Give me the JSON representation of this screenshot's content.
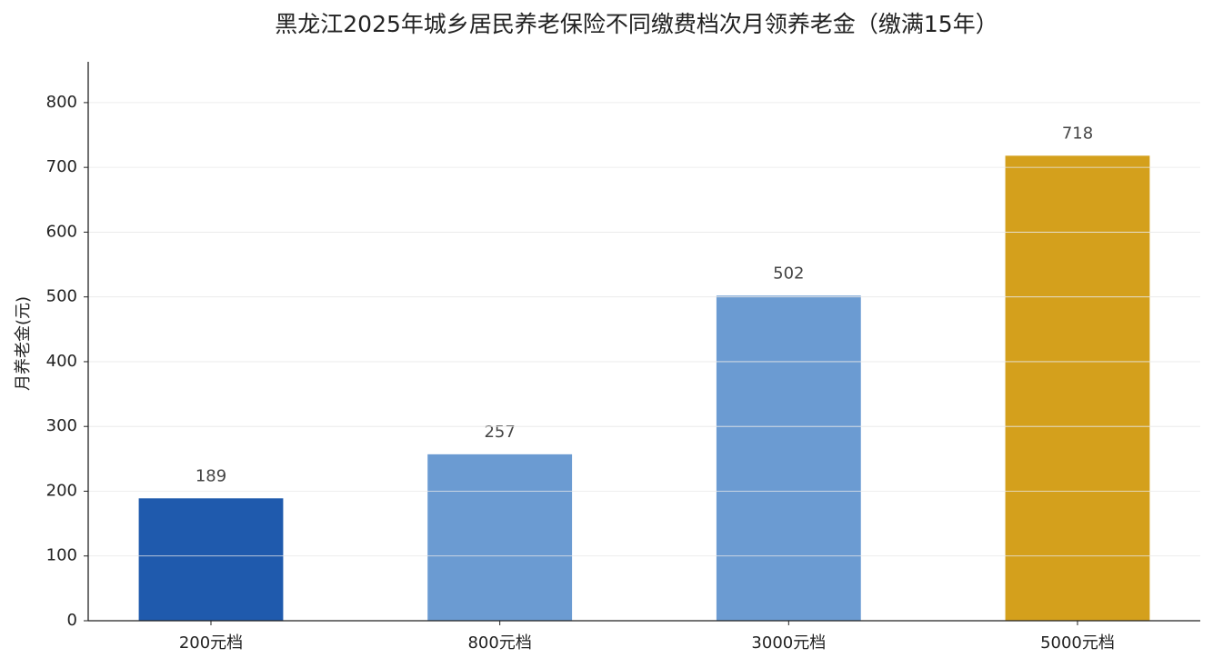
{
  "chart_data": {
    "type": "bar",
    "title": "黑龙江2025年城乡居民养老保险不同缴费档次月领养老金（缴满15年）",
    "y_label": "月养老金(元)",
    "categories": [
      "200元档",
      "800元档",
      "3000元档",
      "5000元档"
    ],
    "values": [
      189,
      257,
      502,
      718
    ],
    "colors": [
      "#1f5aad",
      "#6b9bd2",
      "#6b9bd2",
      "#d4a01c"
    ],
    "ylim": [
      0,
      863
    ],
    "yticks": [
      0,
      100,
      200,
      300,
      400,
      500,
      600,
      700,
      800
    ],
    "grid": true
  }
}
